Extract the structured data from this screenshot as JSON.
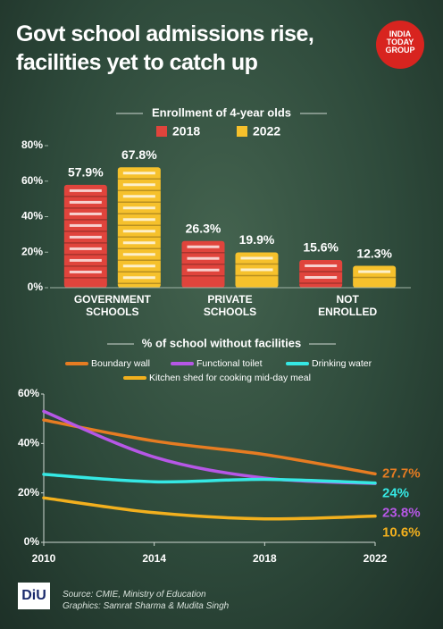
{
  "header": {
    "title": "Govt school admissions rise, facilities yet to catch up",
    "logo": "INDIA TODAY GROUP"
  },
  "chart_data": [
    {
      "type": "bar",
      "title": "Enrollment of 4-year olds",
      "categories": [
        "GOVERNMENT SCHOOLS",
        "PRIVATE SCHOOLS",
        "NOT ENROLLED"
      ],
      "series": [
        {
          "name": "2018",
          "color": "#e0443c",
          "values": [
            57.9,
            26.3,
            15.6
          ],
          "value_labels": [
            "57.9%",
            "26.3%",
            "15.6%"
          ]
        },
        {
          "name": "2022",
          "color": "#f6c12c",
          "values": [
            67.8,
            19.9,
            12.3
          ],
          "value_labels": [
            "67.8%",
            "19.9%",
            "12.3%"
          ]
        }
      ],
      "ylim": [
        0,
        80
      ],
      "yticks": [
        {
          "value": 0,
          "label": "0%"
        },
        {
          "value": 20,
          "label": "20%"
        },
        {
          "value": 40,
          "label": "40%"
        },
        {
          "value": 60,
          "label": "60%"
        },
        {
          "value": 80,
          "label": "80%"
        }
      ]
    },
    {
      "type": "line",
      "title": "% of school without facilities",
      "x": [
        2010,
        2014,
        2018,
        2022
      ],
      "series": [
        {
          "name": "Boundary wall",
          "color": "#e67c22",
          "values": [
            49.5,
            41,
            35.5,
            27.7
          ],
          "value_labels": [
            null,
            null,
            null,
            "27.7%"
          ]
        },
        {
          "name": "Functional toilet",
          "color": "#b657e6",
          "values": [
            53,
            34.5,
            26,
            23.8
          ],
          "value_labels": [
            null,
            null,
            null,
            "23.8%"
          ]
        },
        {
          "name": "Drinking water",
          "color": "#35e8e4",
          "values": [
            27.5,
            24.5,
            25.5,
            24
          ],
          "value_labels": [
            null,
            null,
            null,
            "24%"
          ]
        },
        {
          "name": "Kitchen shed for cooking mid-day meal",
          "color": "#f2b01e",
          "values": [
            18,
            12,
            9.5,
            10.6
          ],
          "value_labels": [
            null,
            null,
            null,
            "10.6%"
          ]
        }
      ],
      "xlim": [
        2010,
        2022
      ],
      "xticks": [
        2010,
        2014,
        2018,
        2022
      ],
      "ylim": [
        0,
        60
      ],
      "yticks": [
        {
          "value": 0,
          "label": "0%"
        },
        {
          "value": 20,
          "label": "20%"
        },
        {
          "value": 40,
          "label": "40%"
        },
        {
          "value": 60,
          "label": "60%"
        }
      ]
    }
  ],
  "footer": {
    "badge": "DiU",
    "source": "Source: CMIE, Ministry of Education",
    "credits": "Graphics: Samrat Sharma & Mudita Singh"
  }
}
